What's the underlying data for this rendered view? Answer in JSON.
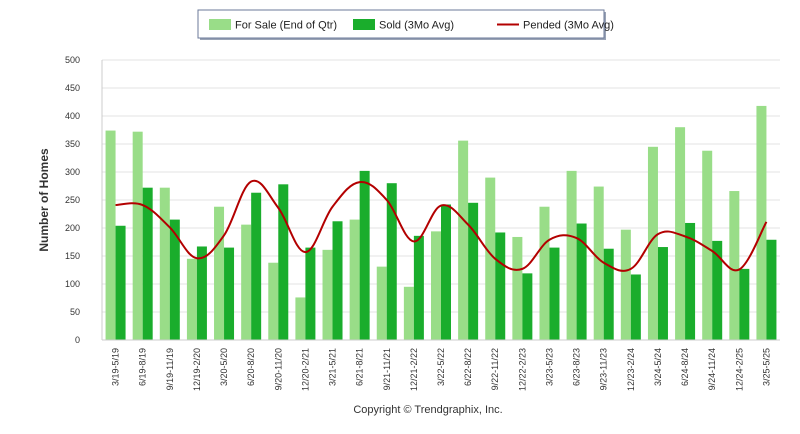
{
  "chart_data": {
    "type": "bar",
    "title": "",
    "xlabel": "",
    "ylabel": "Number of Homes",
    "ylim": [
      0,
      500
    ],
    "yticks": [
      0,
      50,
      100,
      150,
      200,
      250,
      300,
      350,
      400,
      450,
      500
    ],
    "grid": "horizontal",
    "legend_position": "top-center",
    "categories": [
      "3/19-5/19",
      "6/19-8/19",
      "9/19-11/19",
      "12/19-2/20",
      "3/20-5/20",
      "6/20-8/20",
      "9/20-11/20",
      "12/20-2/21",
      "3/21-5/21",
      "6/21-8/21",
      "9/21-11/21",
      "12/21-2/22",
      "3/22-5/22",
      "6/22-8/22",
      "9/22-11/22",
      "12/22-2/23",
      "3/23-5/23",
      "6/23-8/23",
      "9/23-11/23",
      "12/23-2/24",
      "3/24-5/24",
      "6/24-8/24",
      "9/24-11/24",
      "12/24-2/25",
      "3/25-5/25"
    ],
    "series": [
      {
        "name": "For Sale (End of Qtr)",
        "kind": "bar",
        "color": "#99dd88",
        "values": [
          374,
          372,
          272,
          145,
          238,
          206,
          138,
          76,
          161,
          215,
          131,
          95,
          194,
          356,
          290,
          184,
          238,
          302,
          274,
          197,
          345,
          380,
          338,
          266,
          418
        ]
      },
      {
        "name": "Sold (3Mo Avg)",
        "kind": "bar",
        "color": "#1aad2c",
        "values": [
          204,
          272,
          215,
          167,
          165,
          263,
          278,
          165,
          212,
          302,
          280,
          186,
          242,
          245,
          192,
          119,
          165,
          208,
          163,
          117,
          166,
          209,
          177,
          127,
          179
        ]
      },
      {
        "name": "Pended (3Mo Avg)",
        "kind": "line",
        "color": "#b30000",
        "values": [
          241,
          241,
          201,
          146,
          187,
          283,
          236,
          157,
          238,
          282,
          250,
          176,
          240,
          206,
          145,
          127,
          179,
          182,
          138,
          127,
          189,
          185,
          159,
          126,
          211
        ]
      }
    ]
  },
  "footer": {
    "copyright": "Copyright © Trendgraphix, Inc."
  }
}
